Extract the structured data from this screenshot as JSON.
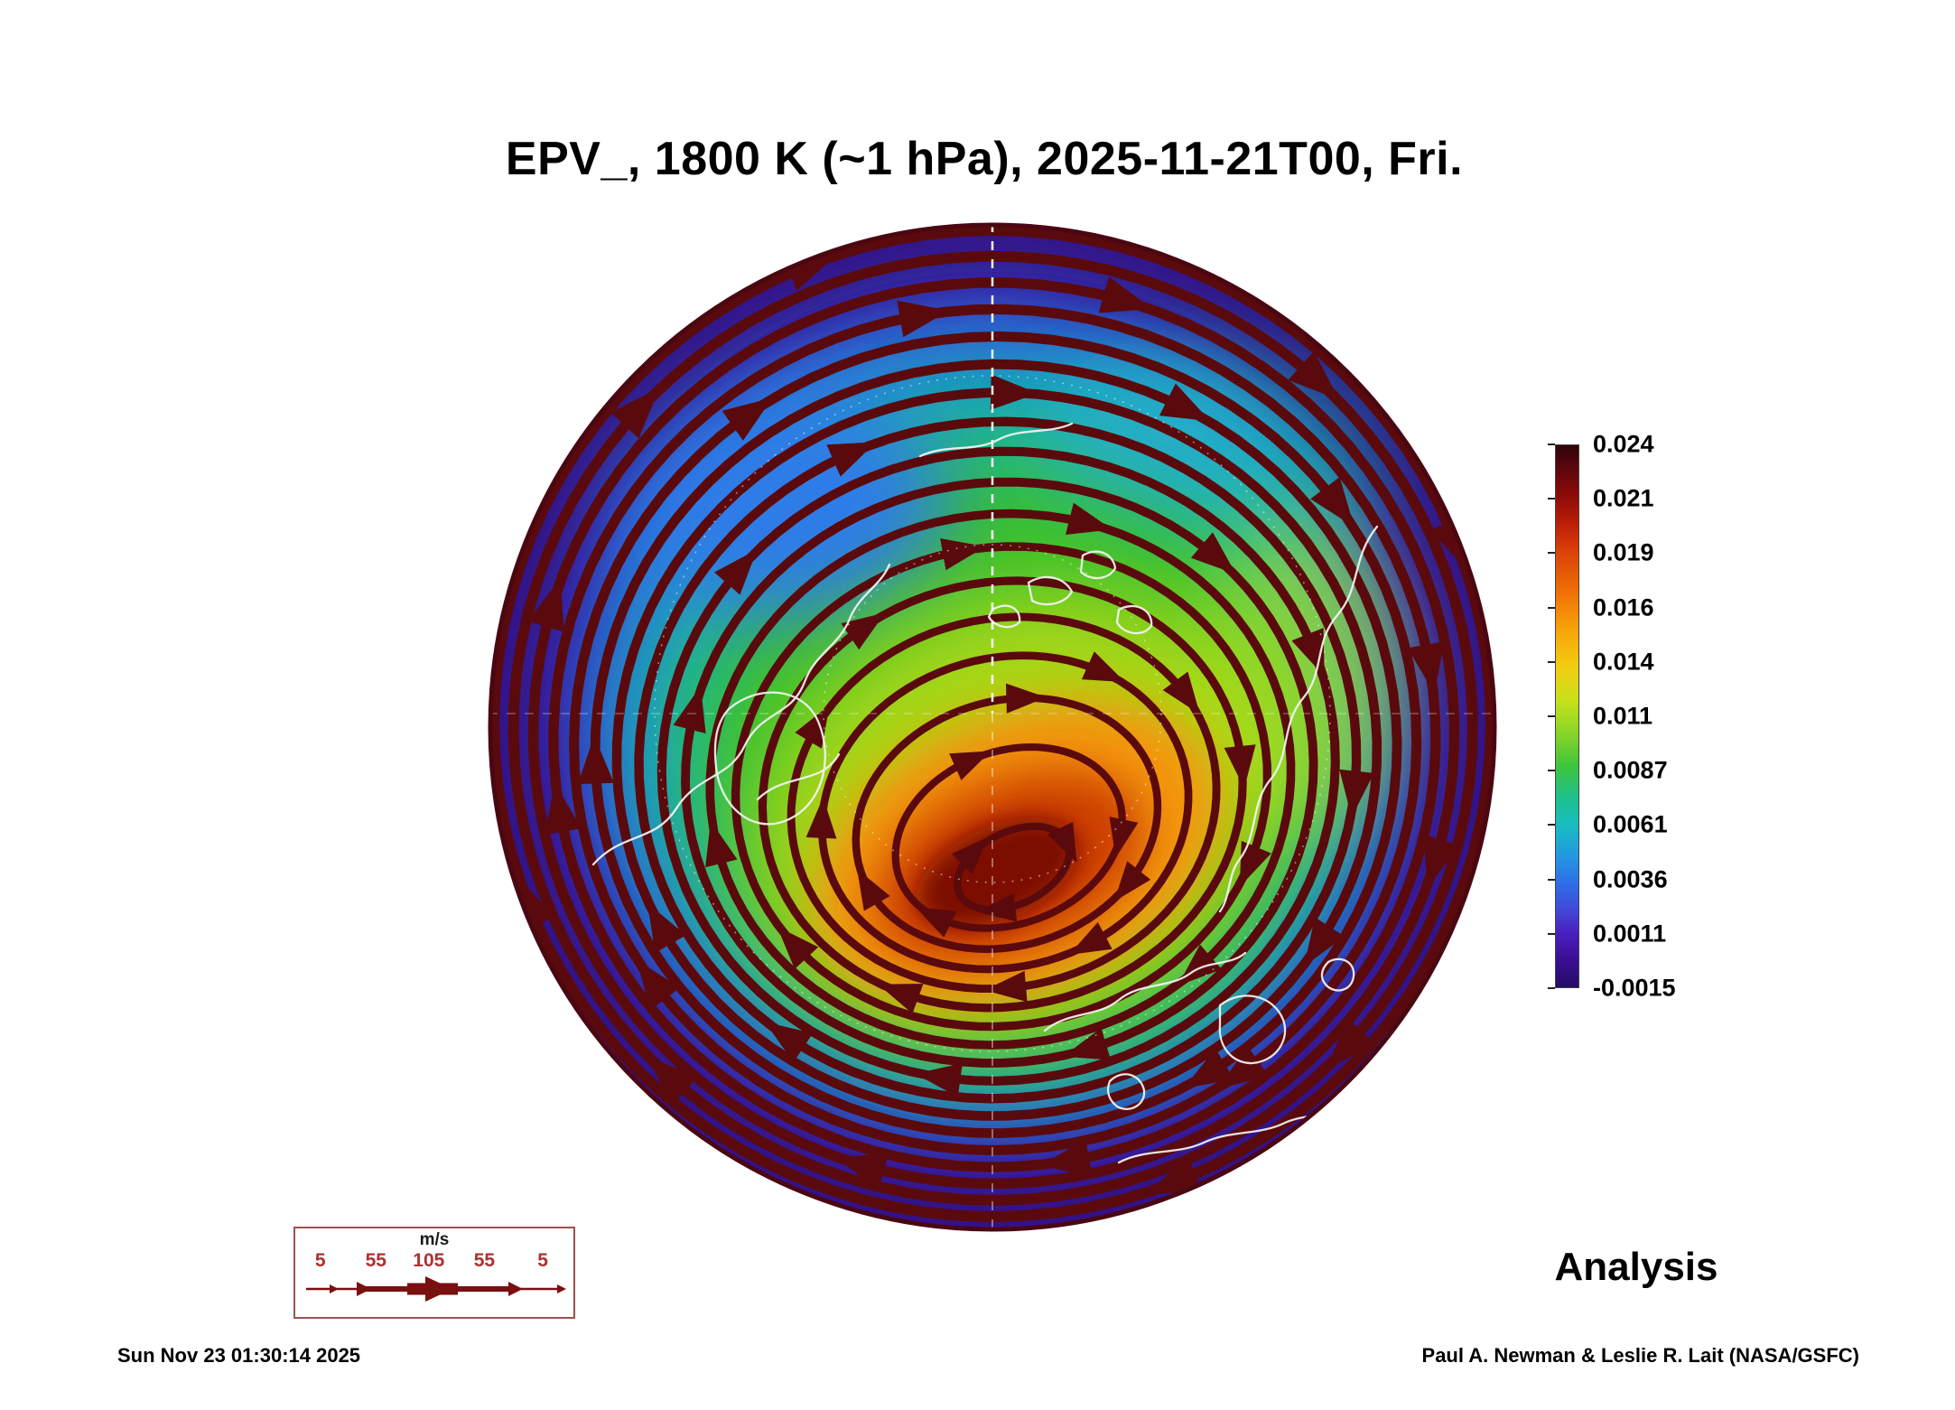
{
  "title": "EPV_, 1800 K (~1 hPa), 2025-11-21T00, Fri.",
  "annotation": {
    "analysis_label": "Analysis"
  },
  "colorbar": {
    "tick_labels": [
      "0.024",
      "0.021",
      "0.019",
      "0.016",
      "0.014",
      "0.011",
      "0.0087",
      "0.0061",
      "0.0036",
      "0.0011",
      "-0.0015"
    ]
  },
  "wind_legend": {
    "units_label": "m/s",
    "tick_labels": [
      "5",
      "55",
      "105",
      "55",
      "5"
    ]
  },
  "footer": {
    "timestamp": "Sun Nov 23 01:30:14 2025",
    "credit": "Paul A. Newman & Leslie R. Lait (NASA/GSFC)"
  },
  "colors": {
    "streamline": "#5a0a0c",
    "coastline": "#f5f5f5",
    "wind_legend_accent": "#7a1010",
    "outer_field": "#40129e",
    "vortex_core": "#7c0a04"
  },
  "chart_data": {
    "type": "heatmap",
    "title": "EPV_, 1800 K (~1 hPa), 2025-11-21T00, Fri.",
    "field": "EPV_",
    "level": "1800 K (~1 hPa)",
    "valid_time": "2025-11-21T00, Fri.",
    "projection": "north polar stereographic globe",
    "overlay": "wind streamlines with arrowheads",
    "colorbar_ticks": [
      0.024,
      0.021,
      0.019,
      0.016,
      0.014,
      0.011,
      0.0087,
      0.0061,
      0.0036,
      0.0011,
      -0.0015
    ],
    "colorbar_orientation": "vertical",
    "colorbar_colors_top_to_bottom": [
      "#30030a",
      "#8a0a08",
      "#d93d08",
      "#ef6f06",
      "#f7a309",
      "#f2ce12",
      "#c8e01a",
      "#3ec53c",
      "#18bdc0",
      "#2f6de6",
      "#4b1fc0",
      "#250b66"
    ],
    "wind_speed_legend": {
      "units": "m/s",
      "ticks": [
        5,
        55,
        105,
        55,
        5
      ]
    },
    "annotations": [
      "Analysis"
    ],
    "plot_timestamp": "Sun Nov 23 01:30:14 2025",
    "credit": "Paul A. Newman & Leslie R. Lait (NASA/GSFC)"
  }
}
